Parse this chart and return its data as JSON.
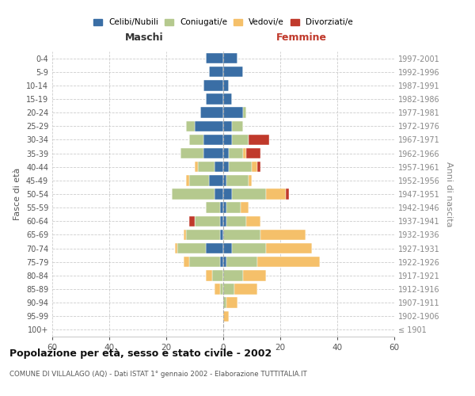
{
  "age_groups": [
    "100+",
    "95-99",
    "90-94",
    "85-89",
    "80-84",
    "75-79",
    "70-74",
    "65-69",
    "60-64",
    "55-59",
    "50-54",
    "45-49",
    "40-44",
    "35-39",
    "30-34",
    "25-29",
    "20-24",
    "15-19",
    "10-14",
    "5-9",
    "0-4"
  ],
  "birth_years": [
    "≤ 1901",
    "1902-1906",
    "1907-1911",
    "1912-1916",
    "1917-1921",
    "1922-1926",
    "1927-1931",
    "1932-1936",
    "1937-1941",
    "1942-1946",
    "1947-1951",
    "1952-1956",
    "1957-1961",
    "1962-1966",
    "1967-1971",
    "1972-1976",
    "1977-1981",
    "1982-1986",
    "1987-1991",
    "1992-1996",
    "1997-2001"
  ],
  "male": {
    "celibi": [
      0,
      0,
      0,
      0,
      0,
      1,
      6,
      1,
      1,
      1,
      3,
      5,
      3,
      7,
      7,
      10,
      8,
      6,
      7,
      5,
      6
    ],
    "coniugati": [
      0,
      0,
      0,
      1,
      4,
      11,
      10,
      12,
      9,
      5,
      15,
      7,
      6,
      8,
      5,
      3,
      0,
      0,
      0,
      0,
      0
    ],
    "vedovi": [
      0,
      0,
      0,
      2,
      2,
      2,
      1,
      1,
      0,
      0,
      0,
      1,
      1,
      0,
      0,
      0,
      0,
      0,
      0,
      0,
      0
    ],
    "divorziati": [
      0,
      0,
      0,
      0,
      0,
      0,
      0,
      0,
      2,
      0,
      0,
      0,
      0,
      0,
      0,
      0,
      0,
      0,
      0,
      0,
      0
    ]
  },
  "female": {
    "nubili": [
      0,
      0,
      0,
      0,
      0,
      1,
      3,
      0,
      1,
      1,
      3,
      1,
      2,
      2,
      3,
      3,
      7,
      3,
      2,
      7,
      5
    ],
    "coniugate": [
      0,
      0,
      1,
      4,
      7,
      11,
      12,
      13,
      7,
      5,
      12,
      8,
      8,
      5,
      6,
      4,
      1,
      0,
      0,
      0,
      0
    ],
    "vedove": [
      0,
      2,
      4,
      8,
      8,
      22,
      16,
      16,
      5,
      3,
      7,
      1,
      2,
      1,
      0,
      0,
      0,
      0,
      0,
      0,
      0
    ],
    "divorziate": [
      0,
      0,
      0,
      0,
      0,
      0,
      0,
      0,
      0,
      0,
      1,
      0,
      1,
      5,
      7,
      0,
      0,
      0,
      0,
      0,
      0
    ]
  },
  "colors": {
    "celibi": "#3a6ea5",
    "coniugati": "#b5c98e",
    "vedovi": "#f5c06a",
    "divorziati": "#c0392b"
  },
  "xlim": 60,
  "title": "Popolazione per età, sesso e stato civile - 2002",
  "subtitle": "COMUNE DI VILLALAGO (AQ) - Dati ISTAT 1° gennaio 2002 - Elaborazione TUTTITALIA.IT",
  "ylabel_left": "Fasce di età",
  "ylabel_right": "Anni di nascita",
  "xlabel_male": "Maschi",
  "xlabel_female": "Femmine",
  "bg_color": "#ffffff"
}
